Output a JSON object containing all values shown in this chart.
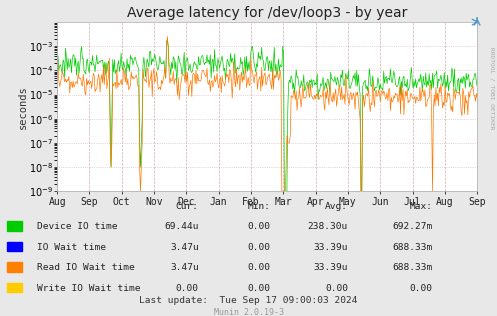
{
  "title": "Average latency for /dev/loop3 - by year",
  "ylabel": "seconds",
  "side_label": "RRDTOOL / TOBI OETIKER",
  "bg_color": "#e8e8e8",
  "plot_bg_color": "#ffffff",
  "ylim_min": 1e-09,
  "ylim_max": 0.01,
  "yticks": [
    1e-09,
    1e-08,
    1e-07,
    1e-06,
    1e-05,
    0.0001,
    0.001
  ],
  "x_labels": [
    "Aug",
    "Sep",
    "Oct",
    "Nov",
    "Dec",
    "Jan",
    "Feb",
    "Mar",
    "Apr",
    "May",
    "Jun",
    "Jul",
    "Aug",
    "Sep"
  ],
  "legend": [
    {
      "label": "Device IO time",
      "color": "#00cc00"
    },
    {
      "label": "IO Wait time",
      "color": "#0000ff"
    },
    {
      "label": "Read IO Wait time",
      "color": "#ff7f00"
    },
    {
      "label": "Write IO Wait time",
      "color": "#ffcc00"
    }
  ],
  "stats_headers": [
    "Cur:",
    "Min:",
    "Avg:",
    "Max:"
  ],
  "stats": [
    [
      "69.44u",
      "0.00",
      "238.30u",
      "692.27m"
    ],
    [
      "3.47u",
      "0.00",
      "33.39u",
      "688.33m"
    ],
    [
      "3.47u",
      "0.00",
      "33.39u",
      "688.33m"
    ],
    [
      "0.00",
      "0.00",
      "0.00",
      "0.00"
    ]
  ],
  "last_update": "Last update:  Tue Sep 17 09:00:03 2024",
  "munin_version": "Munin 2.0.19-3",
  "line_color_green": "#00cc00",
  "line_color_orange": "#ff7700",
  "title_fontsize": 10,
  "grid_color_v": "#cc9999",
  "grid_color_h": "#cc9999"
}
